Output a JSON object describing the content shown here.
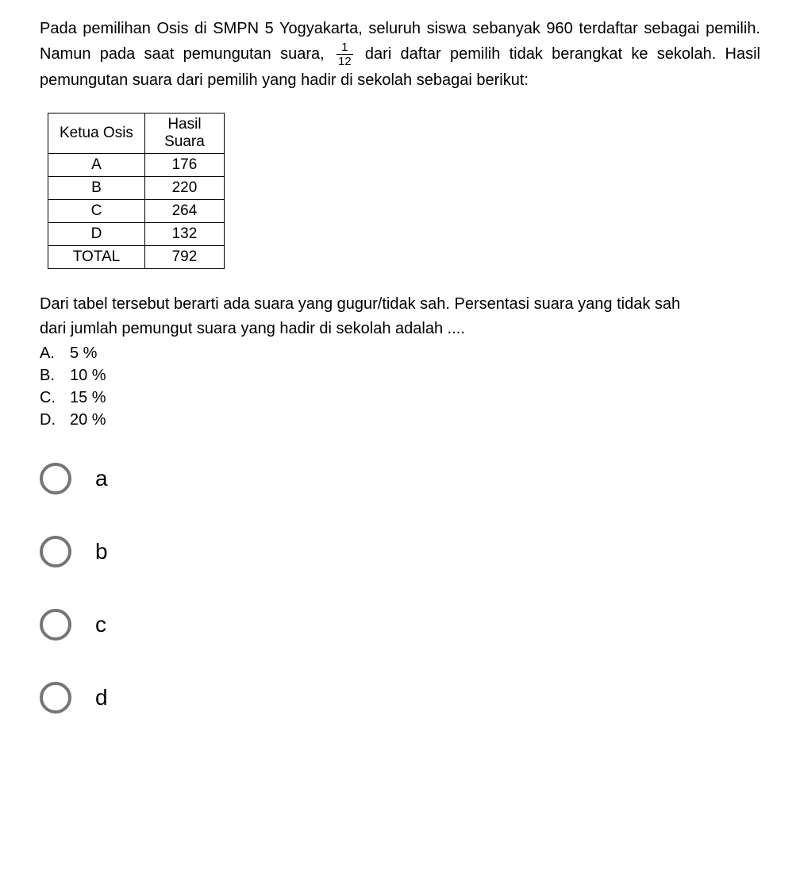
{
  "question": {
    "text_part1": "Pada pemilihan Osis di SMPN 5 Yogyakarta, seluruh siswa sebanyak 960 terdaftar sebagai pemilih. Namun pada saat pemungutan suara, ",
    "fraction_num": "1",
    "fraction_den": "12",
    "text_part2": " dari daftar pemilih tidak berangkat ke sekolah. Hasil pemungutan suara dari pemilih yang hadir di sekolah sebagai berikut:"
  },
  "table": {
    "header_left": "Ketua Osis",
    "header_right_line1": "Hasil",
    "header_right_line2": "Suara",
    "rows": [
      {
        "name": "A",
        "value": "176"
      },
      {
        "name": "B",
        "value": "220"
      },
      {
        "name": "C",
        "value": "264"
      },
      {
        "name": "D",
        "value": "132"
      },
      {
        "name": "TOTAL",
        "value": "792"
      }
    ]
  },
  "sub_question": {
    "line1": "Dari tabel tersebut berarti ada suara yang gugur/tidak sah. Persentasi suara yang tidak sah",
    "line2": "dari jumlah pemungut suara yang hadir di sekolah adalah ....",
    "options": [
      {
        "letter": "A.",
        "text": "5 %"
      },
      {
        "letter": "B.",
        "text": "10 %"
      },
      {
        "letter": "C.",
        "text": "15 %"
      },
      {
        "letter": "D.",
        "text": "20 %"
      }
    ]
  },
  "radio_options": [
    {
      "label": "a"
    },
    {
      "label": "b"
    },
    {
      "label": "c"
    },
    {
      "label": "d"
    }
  ]
}
